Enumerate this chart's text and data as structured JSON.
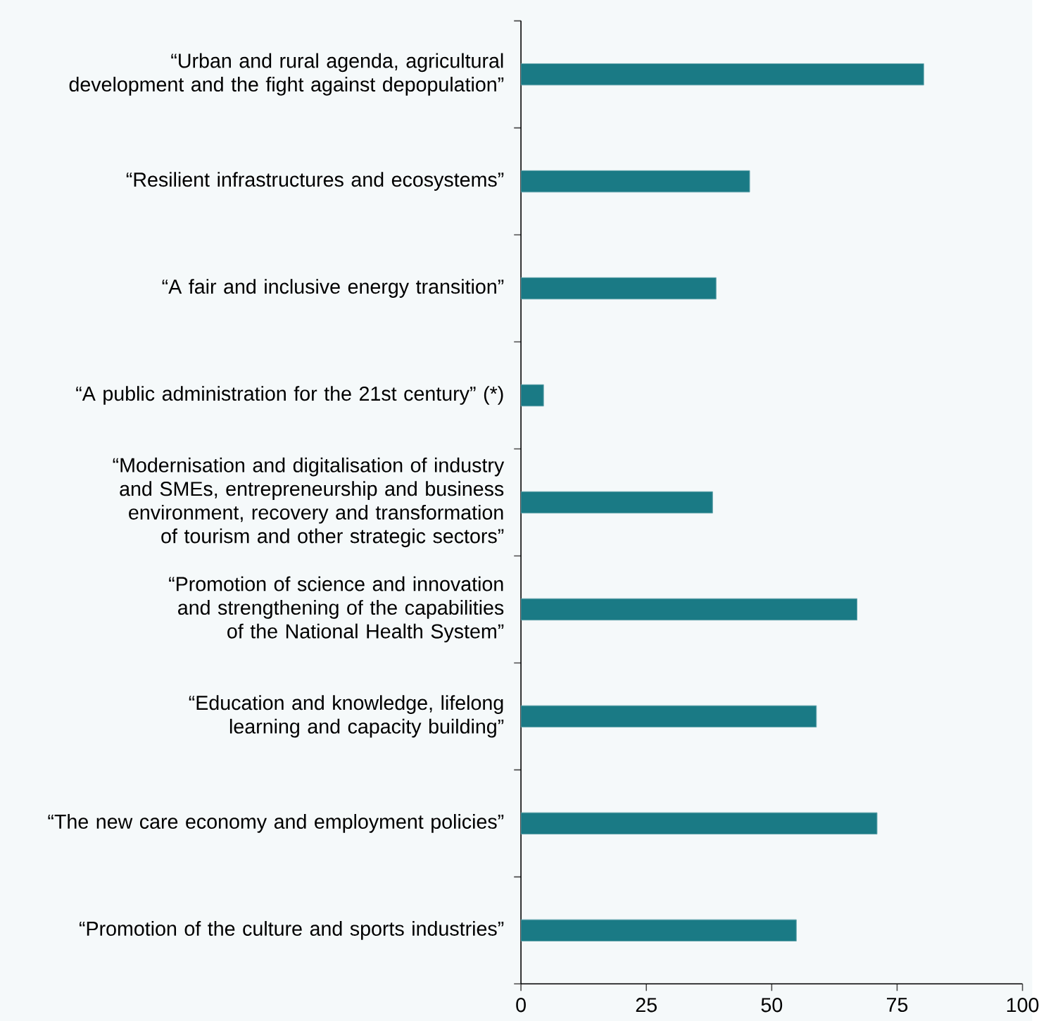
{
  "chart_data": {
    "type": "bar",
    "orientation": "horizontal",
    "categories": [
      "“Urban and rural agenda, agricultural development and the fight against depopulation”",
      "“Resilient infrastructures and ecosystems”",
      "“A fair and inclusive energy transition”",
      "“A public administration for the 21st century” (*)",
      "“Modernisation and digitalisation of industry and SMEs, entrepreneurship and business environment, recovery and transformation of tourism and other strategic sectors”",
      "“Promotion of science and innovation and strengthening of the capabilities of the National Health System”",
      "“Education and knowledge, lifelong learning and capacity building”",
      "“The new care economy and employment policies”",
      "“Promotion of the culture and sports industries”"
    ],
    "values": [
      80.3,
      45.6,
      38.9,
      4.5,
      38.2,
      67.0,
      58.9,
      71.0,
      54.9
    ],
    "color": "#1a7a85",
    "xlim": [
      0,
      100
    ],
    "xticks": [
      0,
      25,
      50,
      75,
      100
    ]
  }
}
